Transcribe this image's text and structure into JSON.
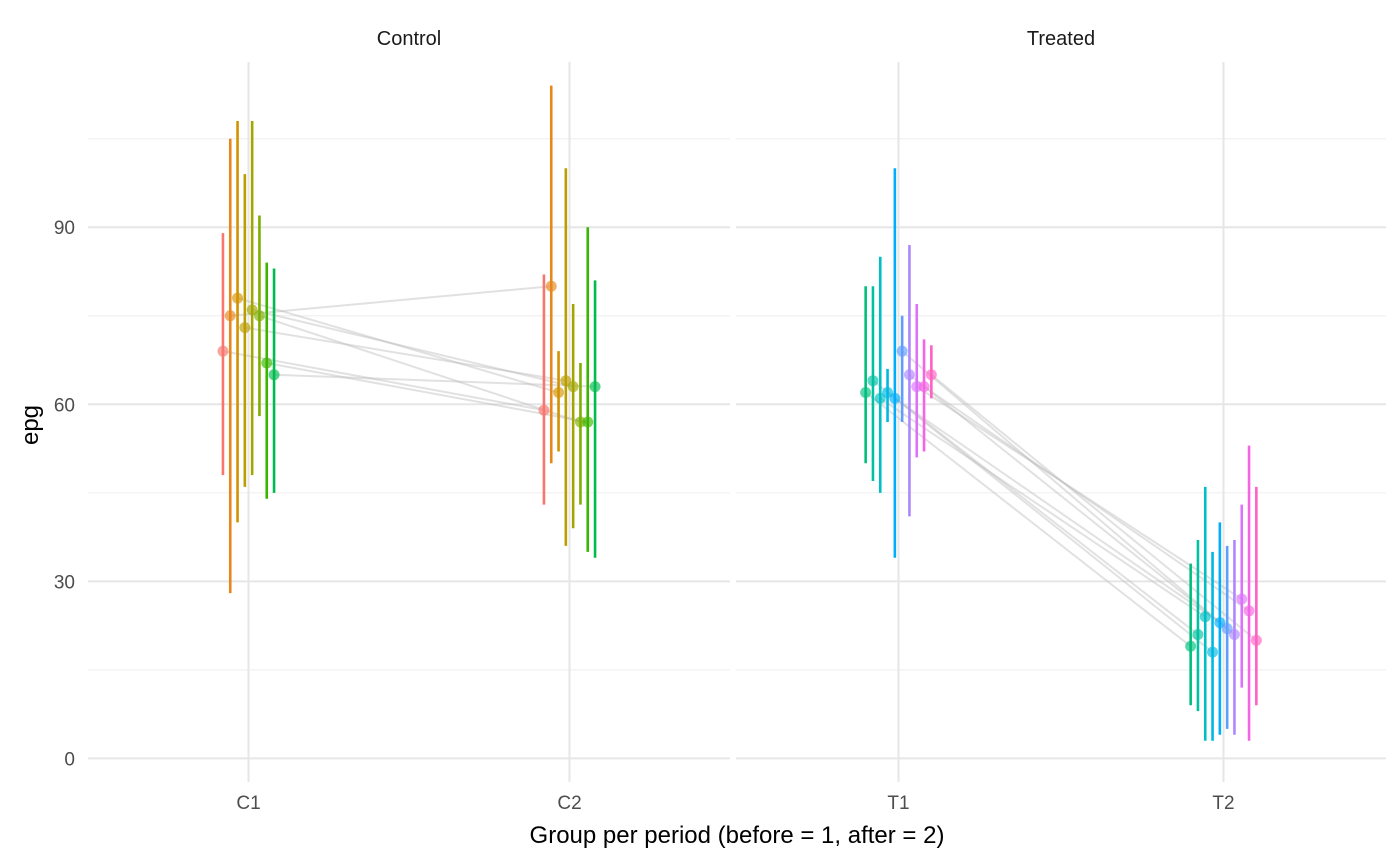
{
  "chart_data": {
    "type": "scatter",
    "xlabel": "Group per period (before = 1, after = 2)",
    "ylabel": "epg",
    "ylim": [
      -4,
      118
    ],
    "yticks": [
      0,
      30,
      60,
      90
    ],
    "grid": true,
    "legend": "none",
    "panels": [
      {
        "title": "Control",
        "categories": [
          "C1",
          "C2"
        ],
        "subjects": [
          {
            "color": "#F8766D",
            "before": {
              "mean": 69,
              "lo": 48,
              "hi": 89
            },
            "after": {
              "mean": 59,
              "lo": 43,
              "hi": 82
            }
          },
          {
            "color": "#E7861B",
            "before": {
              "mean": 75,
              "lo": 28,
              "hi": 105
            },
            "after": {
              "mean": 80,
              "lo": 50,
              "hi": 114
            }
          },
          {
            "color": "#D39200",
            "before": {
              "mean": 78,
              "lo": 40,
              "hi": 108
            },
            "after": {
              "mean": 62,
              "lo": 52,
              "hi": 69
            }
          },
          {
            "color": "#BB9D00",
            "before": {
              "mean": 73,
              "lo": 46,
              "hi": 99
            },
            "after": {
              "mean": 64,
              "lo": 36,
              "hi": 100
            }
          },
          {
            "color": "#A3A500",
            "before": {
              "mean": 76,
              "lo": 48,
              "hi": 108
            },
            "after": {
              "mean": 63,
              "lo": 39,
              "hi": 77
            }
          },
          {
            "color": "#7CAE00",
            "before": {
              "mean": 75,
              "lo": 58,
              "hi": 92
            },
            "after": {
              "mean": 57,
              "lo": 43,
              "hi": 67
            }
          },
          {
            "color": "#39B600",
            "before": {
              "mean": 67,
              "lo": 44,
              "hi": 84
            },
            "after": {
              "mean": 57,
              "lo": 35,
              "hi": 90
            }
          },
          {
            "color": "#00BB4E",
            "before": {
              "mean": 65,
              "lo": 45,
              "hi": 83
            },
            "after": {
              "mean": 63,
              "lo": 34,
              "hi": 81
            }
          }
        ]
      },
      {
        "title": "Treated",
        "categories": [
          "T1",
          "T2"
        ],
        "subjects": [
          {
            "color": "#00BF7D",
            "before": {
              "mean": 62,
              "lo": 50,
              "hi": 80
            },
            "after": {
              "mean": 19,
              "lo": 9,
              "hi": 33
            }
          },
          {
            "color": "#00C1A3",
            "before": {
              "mean": 64,
              "lo": 47,
              "hi": 80
            },
            "after": {
              "mean": 21,
              "lo": 8,
              "hi": 37
            }
          },
          {
            "color": "#00BFC4",
            "before": {
              "mean": 61,
              "lo": 45,
              "hi": 85
            },
            "after": {
              "mean": 24,
              "lo": 3,
              "hi": 46
            }
          },
          {
            "color": "#00B9E3",
            "before": {
              "mean": 62,
              "lo": 57,
              "hi": 66
            },
            "after": {
              "mean": 18,
              "lo": 3,
              "hi": 35
            }
          },
          {
            "color": "#00ADFA",
            "before": {
              "mean": 61,
              "lo": 34,
              "hi": 100
            },
            "after": {
              "mean": 23,
              "lo": 4,
              "hi": 40
            }
          },
          {
            "color": "#619CFF",
            "before": {
              "mean": 69,
              "lo": 57,
              "hi": 75
            },
            "after": {
              "mean": 22,
              "lo": 5,
              "hi": 36
            }
          },
          {
            "color": "#AE87FF",
            "before": {
              "mean": 65,
              "lo": 41,
              "hi": 87
            },
            "after": {
              "mean": 21,
              "lo": 4,
              "hi": 37
            }
          },
          {
            "color": "#DB72FB",
            "before": {
              "mean": 63,
              "lo": 51,
              "hi": 77
            },
            "after": {
              "mean": 27,
              "lo": 12,
              "hi": 43
            }
          },
          {
            "color": "#F564E3",
            "before": {
              "mean": 63,
              "lo": 52,
              "hi": 71
            },
            "after": {
              "mean": 25,
              "lo": 3,
              "hi": 53
            }
          },
          {
            "color": "#FF61C3",
            "before": {
              "mean": 65,
              "lo": 61,
              "hi": 70
            },
            "after": {
              "mean": 20,
              "lo": 9,
              "hi": 46
            }
          }
        ]
      }
    ]
  }
}
